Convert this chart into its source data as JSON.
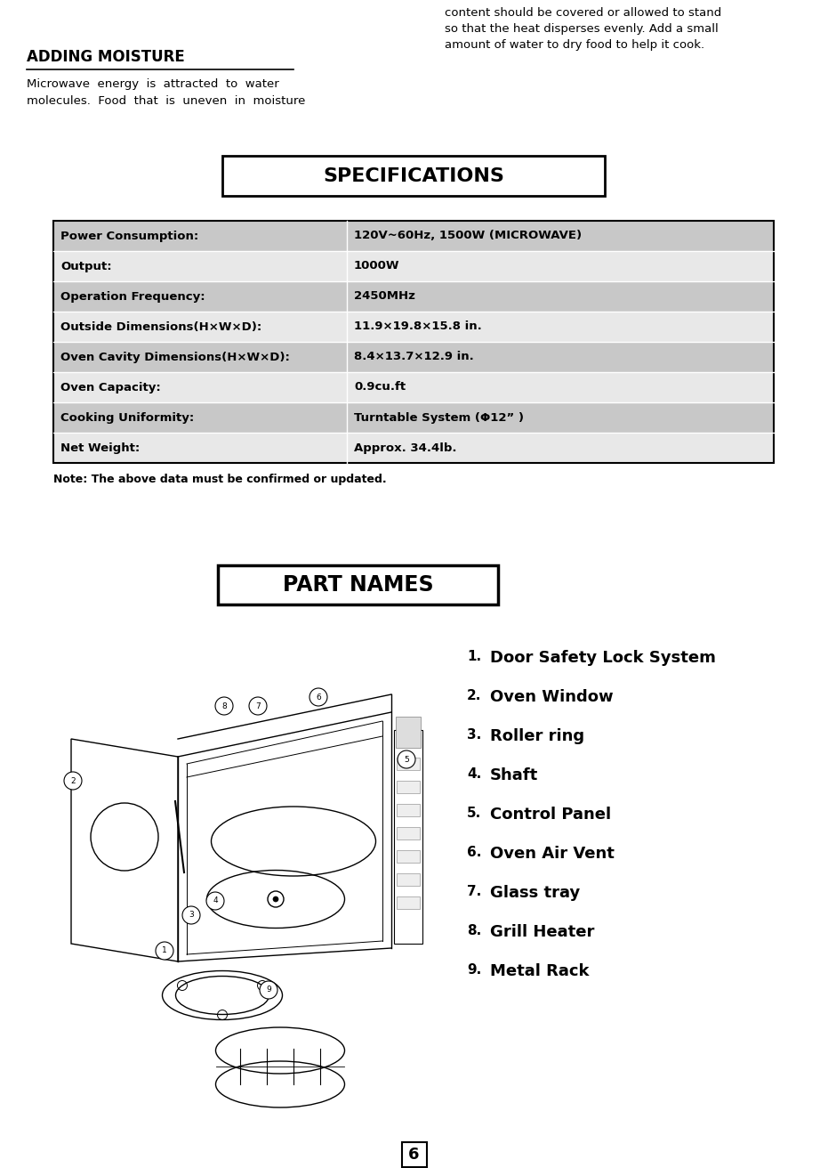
{
  "bg_color": "#ffffff",
  "page_number": "6",
  "top_right_text": "content should be covered or allowed to stand\nso that the heat disperses evenly. Add a small\namount of water to dry food to help it cook.",
  "section_title": "ADDING MOISTURE",
  "section_body": "Microwave  energy  is  attracted  to  water\nmolecules.  Food  that  is  uneven  in  moisture",
  "specs_title": "SPECIFICATIONS",
  "specs_rows": [
    {
      "label": "Power Consumption:",
      "value": "120V~60Hz, 1500W (MICROWAVE)",
      "shaded": true
    },
    {
      "label": "Output:",
      "value": "1000W",
      "shaded": false
    },
    {
      "label": "Operation Frequency:",
      "value": "2450MHz",
      "shaded": true
    },
    {
      "label": "Outside Dimensions(H×W×D):",
      "value": "11.9×19.8×15.8 in.",
      "shaded": false
    },
    {
      "label": "Oven Cavity Dimensions(H×W×D):",
      "value": "8.4×13.7×12.9 in.",
      "shaded": true
    },
    {
      "label": "Oven Capacity:",
      "value": "0.9cu.ft",
      "shaded": false
    },
    {
      "label": "Cooking Uniformity:",
      "value": "Turntable System (Φ12” )",
      "shaded": true
    },
    {
      "label": "Net Weight:",
      "value": "Approx. 34.4lb.",
      "shaded": false
    }
  ],
  "note_text": "Note: The above data must be confirmed or updated.",
  "parts_title": "PART NAMES",
  "parts_list": [
    "Door Safety Lock System",
    "Oven Window",
    "Roller ring",
    "Shaft",
    "Control Panel",
    "Oven Air Vent",
    "Glass tray",
    "Grill Heater",
    "Metal Rack"
  ],
  "shaded_color": "#c8c8c8",
  "unshaded_color": "#e8e8e8",
  "table_border_color": "#000000",
  "text_color": "#000000",
  "title_bg": "#ffffff"
}
